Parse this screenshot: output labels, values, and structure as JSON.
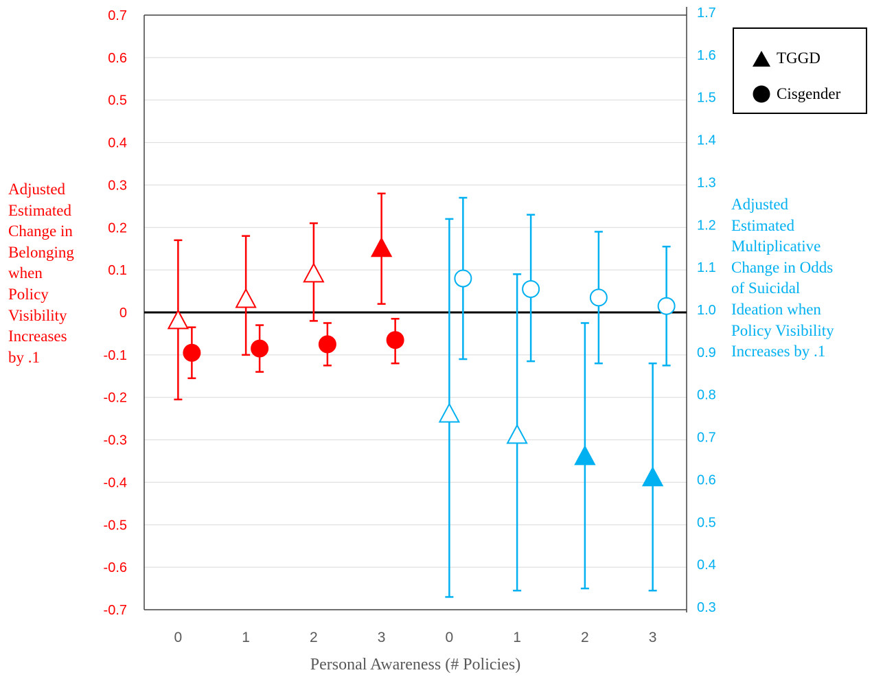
{
  "chart_data": {
    "type": "scatter",
    "xlabel": "Personal Awareness (# Policies)",
    "categories": [
      "0",
      "1",
      "2",
      "3",
      "0",
      "1",
      "2",
      "3"
    ],
    "left_axis": {
      "label": "Adjusted Estimated Change in Belonging when Policy Visibility Increases by .1",
      "label_lines": [
        "Adjusted",
        "Estimated",
        "Change in",
        "Belonging",
        "when",
        "Policy",
        "Visibility",
        "Increases",
        "by .1"
      ],
      "ylim": [
        -0.7,
        0.7
      ],
      "ticks": [
        "0.7",
        "0.6",
        "0.5",
        "0.4",
        "0.3",
        "0.2",
        "0.1",
        "0",
        "-0.1",
        "-0.2",
        "-0.3",
        "-0.4",
        "-0.5",
        "-0.6",
        "-0.7"
      ],
      "color": "#ff0000"
    },
    "right_axis": {
      "label": "Adjusted Estimated Multiplicative Change in Odds of Suicidal Ideation when Policy Visibility Increases by .1",
      "label_lines": [
        "Adjusted",
        "Estimated",
        "Multiplicative",
        "Change in Odds",
        "of Suicidal",
        "Ideation when",
        "Policy Visibility",
        "Increases by .1"
      ],
      "ylim": [
        0.3,
        1.7
      ],
      "ticks": [
        "1.7",
        "1.6",
        "1.5",
        "1.4",
        "1.3",
        "1.2",
        "1.1",
        "1.0",
        "0.9",
        "0.8",
        "0.7",
        "0.6",
        "0.5",
        "0.4",
        "0.3"
      ],
      "color": "#00b0f0"
    },
    "grid": true,
    "legend_position": "top-right",
    "legend": [
      {
        "label": "TGGD",
        "marker": "triangle"
      },
      {
        "label": "Cisgender",
        "marker": "circle"
      }
    ],
    "series": [
      {
        "group": "belonging",
        "axis": "left",
        "marker": "triangle",
        "color": "#ff0000",
        "points": [
          {
            "x": 0,
            "y": -0.02,
            "lo": -0.205,
            "hi": 0.17,
            "filled": false
          },
          {
            "x": 1,
            "y": 0.03,
            "lo": -0.1,
            "hi": 0.18,
            "filled": false
          },
          {
            "x": 2,
            "y": 0.09,
            "lo": -0.02,
            "hi": 0.21,
            "filled": false
          },
          {
            "x": 3,
            "y": 0.15,
            "lo": 0.02,
            "hi": 0.28,
            "filled": true
          }
        ]
      },
      {
        "group": "belonging",
        "axis": "left",
        "marker": "circle",
        "color": "#ff0000",
        "points": [
          {
            "x": 0,
            "y": -0.095,
            "lo": -0.155,
            "hi": -0.035,
            "filled": true
          },
          {
            "x": 1,
            "y": -0.085,
            "lo": -0.14,
            "hi": -0.03,
            "filled": true
          },
          {
            "x": 2,
            "y": -0.075,
            "lo": -0.125,
            "hi": -0.025,
            "filled": true
          },
          {
            "x": 3,
            "y": -0.065,
            "lo": -0.12,
            "hi": -0.015,
            "filled": true
          }
        ]
      },
      {
        "group": "suicidal_ideation",
        "axis": "right",
        "marker": "triangle",
        "color": "#00b0f0",
        "points": [
          {
            "x": 4,
            "y": 0.76,
            "lo": 0.33,
            "hi": 1.22,
            "filled": false
          },
          {
            "x": 5,
            "y": 0.71,
            "lo": 0.345,
            "hi": 1.09,
            "filled": false
          },
          {
            "x": 6,
            "y": 0.66,
            "lo": 0.35,
            "hi": 0.975,
            "filled": true
          },
          {
            "x": 7,
            "y": 0.61,
            "lo": 0.345,
            "hi": 0.88,
            "filled": true
          }
        ]
      },
      {
        "group": "suicidal_ideation",
        "axis": "right",
        "marker": "circle",
        "color": "#00b0f0",
        "points": [
          {
            "x": 4,
            "y": 1.08,
            "lo": 0.89,
            "hi": 1.27,
            "filled": false
          },
          {
            "x": 5,
            "y": 1.055,
            "lo": 0.885,
            "hi": 1.23,
            "filled": false
          },
          {
            "x": 6,
            "y": 1.035,
            "lo": 0.88,
            "hi": 1.19,
            "filled": false
          },
          {
            "x": 7,
            "y": 1.015,
            "lo": 0.875,
            "hi": 1.155,
            "filled": false
          }
        ]
      }
    ]
  }
}
